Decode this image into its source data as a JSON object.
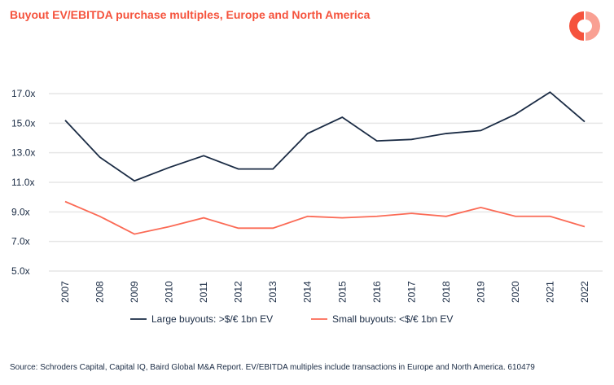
{
  "title": "Buyout EV/EBITDA purchase multiples, Europe and North America",
  "source": "Source: Schroders Capital, Capital IQ, Baird Global M&A Report. EV/EBITDA multiples include transactions in Europe and North America. 610479",
  "chart_data": {
    "type": "line",
    "title": "Buyout EV/EBITDA purchase multiples, Europe and North America",
    "x": [
      "2007",
      "2008",
      "2009",
      "2010",
      "2011",
      "2012",
      "2013",
      "2014",
      "2015",
      "2016",
      "2017",
      "2018",
      "2019",
      "2020",
      "2021",
      "2022"
    ],
    "yticks": [
      "5.0x",
      "7.0x",
      "9.0x",
      "11.0x",
      "13.0x",
      "15.0x",
      "17.0x"
    ],
    "ylim": [
      5,
      17
    ],
    "grid": true,
    "legend": "bottom",
    "series": [
      {
        "name": "Large buyouts: >$/€ 1bn EV",
        "color": "#1a2b44",
        "values": [
          15.2,
          12.7,
          11.1,
          12.0,
          12.8,
          11.9,
          11.9,
          14.3,
          15.4,
          13.8,
          13.9,
          14.3,
          14.5,
          15.6,
          17.1,
          15.1
        ]
      },
      {
        "name": "Small buyouts: <$/€ 1bn EV",
        "color": "#fb6a55",
        "values": [
          9.7,
          8.7,
          7.5,
          8.0,
          8.6,
          7.9,
          7.9,
          8.7,
          8.6,
          8.7,
          8.9,
          8.7,
          9.3,
          8.7,
          8.7,
          8.0
        ]
      }
    ]
  }
}
